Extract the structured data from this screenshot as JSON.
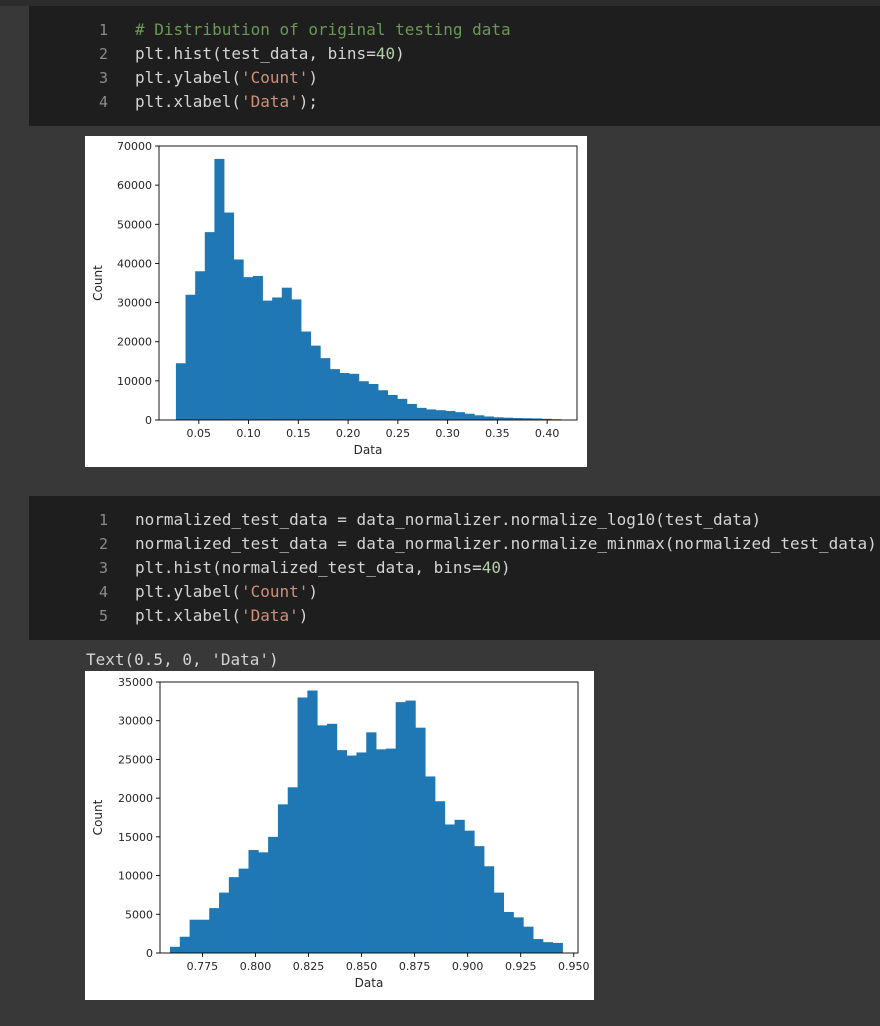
{
  "cells": [
    {
      "run_label": "[ ]",
      "lines": [
        {
          "n": "1",
          "tokens": [
            {
              "t": "# Distribution of original testing data",
              "c": "cm"
            }
          ]
        },
        {
          "n": "2",
          "tokens": [
            {
              "t": "plt.hist(test_data, bins=",
              "c": ""
            },
            {
              "t": "40",
              "c": "nm"
            },
            {
              "t": ")",
              "c": ""
            }
          ]
        },
        {
          "n": "3",
          "tokens": [
            {
              "t": "plt.ylabel(",
              "c": ""
            },
            {
              "t": "'Count'",
              "c": "st"
            },
            {
              "t": ")",
              "c": ""
            }
          ]
        },
        {
          "n": "4",
          "tokens": [
            {
              "t": "plt.xlabel(",
              "c": ""
            },
            {
              "t": "'Data'",
              "c": "st"
            },
            {
              "t": ");",
              "c": ""
            }
          ]
        }
      ]
    },
    {
      "run_label": "[ ]",
      "output_text": "Text(0.5, 0, 'Data')",
      "lines": [
        {
          "n": "1",
          "tokens": [
            {
              "t": "normalized_test_data = data_normalizer.normalize_log10(test_data)",
              "c": ""
            }
          ]
        },
        {
          "n": "2",
          "tokens": [
            {
              "t": "normalized_test_data = data_normalizer.normalize_minmax(normalized_test_data)",
              "c": ""
            }
          ]
        },
        {
          "n": "3",
          "tokens": [
            {
              "t": "plt.hist(normalized_test_data, bins=",
              "c": ""
            },
            {
              "t": "40",
              "c": "nm"
            },
            {
              "t": ")",
              "c": ""
            }
          ]
        },
        {
          "n": "4",
          "tokens": [
            {
              "t": "plt.ylabel(",
              "c": ""
            },
            {
              "t": "'Count'",
              "c": "st"
            },
            {
              "t": ")",
              "c": ""
            }
          ]
        },
        {
          "n": "5",
          "tokens": [
            {
              "t": "plt.xlabel(",
              "c": ""
            },
            {
              "t": "'Data'",
              "c": "st"
            },
            {
              "t": ")",
              "c": ""
            }
          ]
        }
      ]
    }
  ],
  "colors": {
    "bar": "#1f77b4",
    "code_bg": "#1e1e1e",
    "page_bg": "#383838"
  },
  "chart_data": [
    {
      "type": "bar",
      "title": "",
      "xlabel": "Data",
      "ylabel": "Count",
      "xlim": [
        0.01,
        0.43
      ],
      "ylim": [
        0,
        70000
      ],
      "xticks": [
        0.05,
        0.1,
        0.15,
        0.2,
        0.25,
        0.3,
        0.35,
        0.4
      ],
      "xtick_labels": [
        "0.05",
        "0.10",
        "0.15",
        "0.20",
        "0.25",
        "0.30",
        "0.35",
        "0.40"
      ],
      "yticks": [
        0,
        10000,
        20000,
        30000,
        40000,
        50000,
        60000,
        70000
      ],
      "ytick_labels": [
        "0",
        "10000",
        "20000",
        "30000",
        "40000",
        "50000",
        "60000",
        "70000"
      ],
      "bin_start": 0.027,
      "bin_width": 0.00967,
      "values": [
        14500,
        32000,
        38000,
        48000,
        66700,
        53000,
        41000,
        36500,
        36800,
        30500,
        31300,
        33800,
        30800,
        22600,
        19000,
        15800,
        13000,
        12000,
        11800,
        9900,
        9200,
        7600,
        6400,
        5400,
        4100,
        3100,
        2700,
        2500,
        2300,
        2000,
        1600,
        1200,
        900,
        700,
        600,
        500,
        450,
        400,
        300,
        200
      ],
      "grid": false
    },
    {
      "type": "bar",
      "title": "",
      "xlabel": "Data",
      "ylabel": "Count",
      "xlim": [
        0.755,
        0.952
      ],
      "ylim": [
        0,
        35000
      ],
      "xticks": [
        0.775,
        0.8,
        0.825,
        0.85,
        0.875,
        0.9,
        0.925,
        0.95
      ],
      "xtick_labels": [
        "0.775",
        "0.800",
        "0.825",
        "0.850",
        "0.875",
        "0.900",
        "0.925",
        "0.950"
      ],
      "yticks": [
        0,
        5000,
        10000,
        15000,
        20000,
        25000,
        30000,
        35000
      ],
      "ytick_labels": [
        "0",
        "5000",
        "10000",
        "15000",
        "20000",
        "25000",
        "30000",
        "35000"
      ],
      "bin_start": 0.7597,
      "bin_width": 0.004625,
      "values": [
        800,
        2100,
        4300,
        4300,
        5800,
        7800,
        9800,
        10900,
        13300,
        13000,
        15000,
        19200,
        21400,
        33000,
        33900,
        29400,
        29600,
        26200,
        25500,
        25900,
        28500,
        26300,
        26400,
        32400,
        32600,
        29100,
        22800,
        19600,
        16600,
        17200,
        15800,
        13800,
        11200,
        7800,
        5300,
        4600,
        3400,
        1800,
        1400,
        1300
      ],
      "grid": false
    }
  ]
}
